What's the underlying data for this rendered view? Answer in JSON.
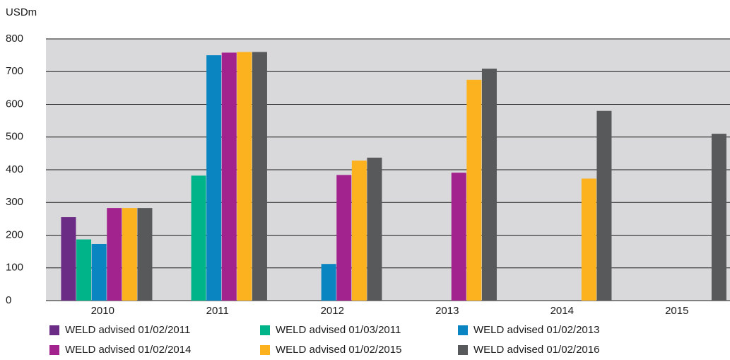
{
  "chart_data": {
    "type": "bar",
    "y_label": "USDm",
    "categories": [
      "2010",
      "2011",
      "2012",
      "2013",
      "2014",
      "2015"
    ],
    "series": [
      {
        "name": "WELD advised 01/02/2011",
        "color": "#6b2c86",
        "values": [
          255,
          null,
          null,
          null,
          null,
          null
        ]
      },
      {
        "name": "WELD advised 01/03/2011",
        "color": "#00b48a",
        "values": [
          187,
          382,
          null,
          null,
          null,
          null
        ]
      },
      {
        "name": "WELD advised 01/02/2013",
        "color": "#0a85c2",
        "values": [
          173,
          750,
          112,
          null,
          null,
          null
        ]
      },
      {
        "name": "WELD advised 01/02/2014",
        "color": "#a3238e",
        "values": [
          283,
          758,
          384,
          391,
          null,
          null
        ]
      },
      {
        "name": "WELD advised 01/02/2015",
        "color": "#fbb21e",
        "values": [
          283,
          760,
          428,
          675,
          373,
          null
        ]
      },
      {
        "name": "WELD advised 01/02/2016",
        "color": "#58595b",
        "values": [
          283,
          760,
          437,
          709,
          580,
          510
        ]
      }
    ],
    "ylim": [
      0,
      800
    ],
    "yticks": [
      0,
      100,
      200,
      300,
      400,
      500,
      600,
      700,
      800
    ],
    "grid": true
  }
}
